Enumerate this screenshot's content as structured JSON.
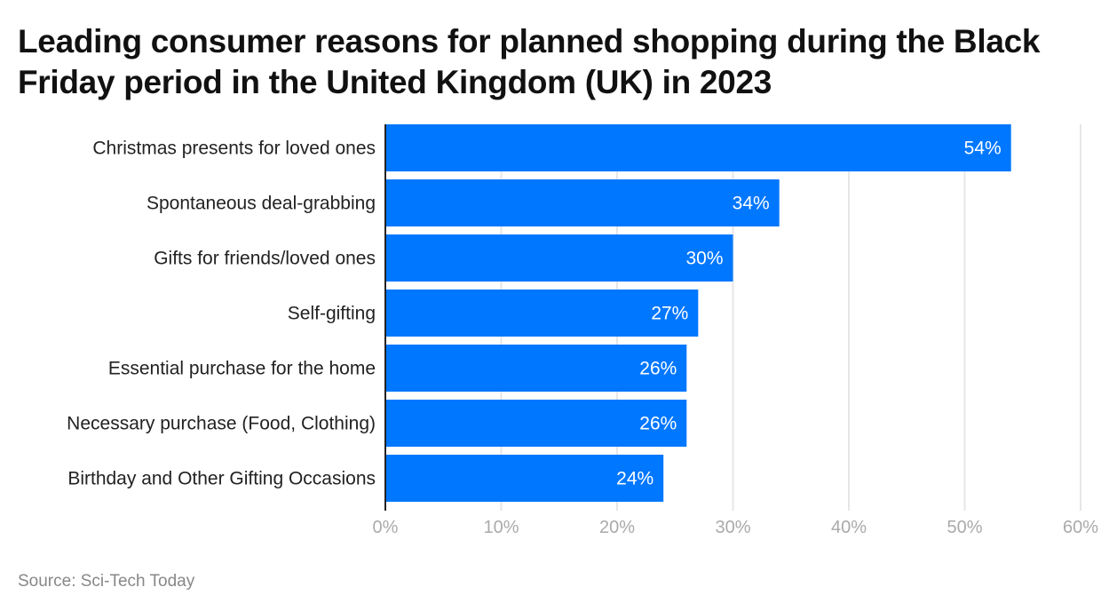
{
  "chart_data": {
    "type": "bar",
    "orientation": "horizontal",
    "title": "Leading consumer reasons for planned shopping during the Black Friday period in the United Kingdom (UK) in 2023",
    "categories": [
      "Christmas presents for loved ones",
      "Spontaneous deal-grabbing",
      "Gifts for friends/loved ones",
      "Self-gifting",
      "Essential purchase for the home",
      "Necessary purchase (Food, Clothing)",
      "Birthday and Other Gifting Occasions"
    ],
    "values": [
      54,
      34,
      30,
      27,
      26,
      26,
      24
    ],
    "data_labels": [
      "54%",
      "34%",
      "30%",
      "27%",
      "26%",
      "26%",
      "24%"
    ],
    "xlim": [
      0,
      60
    ],
    "x_ticks": [
      "0%",
      "10%",
      "20%",
      "30%",
      "40%",
      "50%",
      "60%"
    ],
    "grid": true,
    "bar_color": "#0077ff",
    "source": "Source: Sci-Tech Today"
  }
}
